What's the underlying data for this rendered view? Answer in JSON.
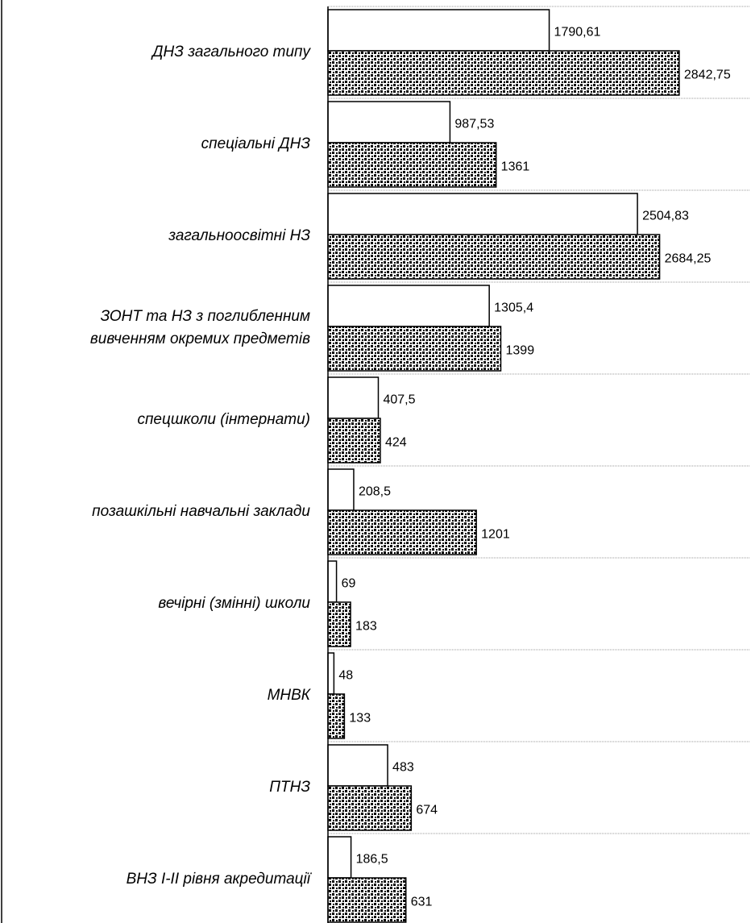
{
  "chart_data": {
    "type": "bar",
    "orientation": "horizontal",
    "categories": [
      "ДНЗ загального типу",
      "спеціальні  ДНЗ",
      "загальноосвітні НЗ",
      "ЗОНТ та НЗ з поглибленним\nвивченням окремих предметів",
      "спецшколи (інтернати)",
      "позашкільні навчальні заклади",
      "вечірні (змінні) школи",
      "МНВК",
      "ПТНЗ",
      "ВНЗ І-ІІ рівня акредитації"
    ],
    "series": [
      {
        "color": "#ffffff",
        "values": [
          1790.61,
          987.53,
          2504.83,
          1305.4,
          407.5,
          208.5,
          69,
          48,
          483,
          186.5
        ],
        "value_labels": [
          "1790,61",
          "987,53",
          "2504,83",
          "1305,4",
          "407,5",
          "208,5",
          "69",
          "48",
          "483",
          "186,5"
        ]
      },
      {
        "color": "#000000",
        "pattern": "dots",
        "values": [
          2842.75,
          1361,
          2684.25,
          1399,
          424,
          1201,
          183,
          133,
          674,
          631
        ],
        "value_labels": [
          "2842,75",
          "1361",
          "2684,25",
          "1399",
          "424",
          "1201",
          "183",
          "133",
          "674",
          "631"
        ]
      }
    ],
    "xlim": [
      0,
      3000
    ]
  }
}
